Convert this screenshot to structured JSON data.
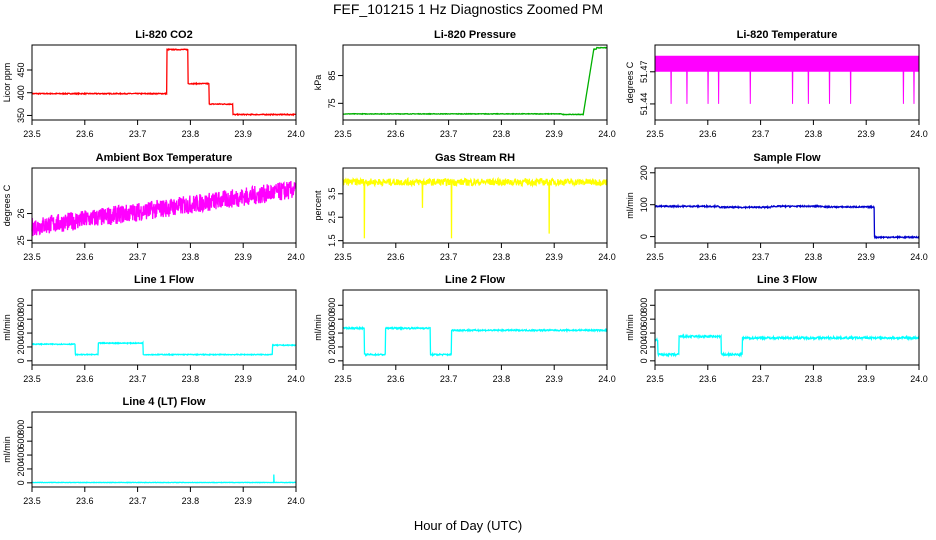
{
  "title": "FEF_101215  1 Hz Diagnostics Zoomed PM",
  "xlabel": "Hour of Day (UTC)",
  "chart_data": [
    {
      "type": "line",
      "title": "Li-820 CO2",
      "ylabel": "Licor ppm",
      "color": "#ff0000",
      "xlim": [
        23.5,
        24.0
      ],
      "ylim": [
        340,
        505
      ],
      "xticks": [
        "23.5",
        "23.6",
        "23.7",
        "23.8",
        "23.9",
        "24.0"
      ],
      "yticks": [
        350,
        400,
        450
      ],
      "pattern": "steps",
      "noise": 1,
      "segments": [
        [
          23.5,
          23.755,
          398
        ],
        [
          23.755,
          23.795,
          495
        ],
        [
          23.795,
          23.835,
          420
        ],
        [
          23.835,
          23.88,
          375
        ],
        [
          23.88,
          24.0,
          352
        ]
      ]
    },
    {
      "type": "line",
      "title": "Li-820 Pressure",
      "ylabel": "kPa",
      "color": "#00b000",
      "xlim": [
        23.5,
        24.0
      ],
      "ylim": [
        69,
        96
      ],
      "xticks": [
        "23.5",
        "23.6",
        "23.7",
        "23.8",
        "23.9",
        "24.0"
      ],
      "yticks": [
        75,
        85
      ],
      "pattern": "pressure",
      "noise": 0.1,
      "segments": [
        [
          23.5,
          23.915,
          71.2
        ],
        [
          23.915,
          23.955,
          71.0
        ],
        [
          23.955,
          23.98,
          94.5
        ],
        [
          23.98,
          24.0,
          95.0
        ]
      ]
    },
    {
      "type": "line",
      "title": "Li-820 Temperature",
      "ylabel": "degrees C",
      "color": "#ff00ff",
      "xlim": [
        23.5,
        24.0
      ],
      "ylim": [
        51.425,
        51.495
      ],
      "xticks": [
        "23.5",
        "23.6",
        "23.7",
        "23.8",
        "23.9",
        "24.0"
      ],
      "yticks": [
        51.44,
        51.47
      ],
      "pattern": "binary",
      "levels": [
        51.44,
        51.455,
        51.47,
        51.485
      ],
      "spikes": [
        23.53,
        23.56,
        23.6,
        23.62,
        23.68,
        23.76,
        23.79,
        23.83,
        23.87,
        23.97,
        23.99
      ]
    },
    {
      "type": "line",
      "title": "Ambient Box Temperature",
      "ylabel": "degrees C",
      "color": "#ff00ff",
      "xlim": [
        23.5,
        24.0
      ],
      "ylim": [
        24.9,
        27.7
      ],
      "xticks": [
        "23.5",
        "23.6",
        "23.7",
        "23.8",
        "23.9",
        "24.0"
      ],
      "yticks": [
        25.0,
        26.0
      ],
      "pattern": "trend",
      "start": 25.5,
      "end": 26.9,
      "noise": 0.35
    },
    {
      "type": "line",
      "title": "Gas Stream RH",
      "ylabel": "percent",
      "color": "#ffff00",
      "xlim": [
        23.5,
        24.0
      ],
      "ylim": [
        1.4,
        4.6
      ],
      "xticks": [
        "23.5",
        "23.6",
        "23.7",
        "23.8",
        "23.9",
        "24.0"
      ],
      "yticks": [
        1.5,
        2.5,
        3.5
      ],
      "pattern": "noisy",
      "base": 4.0,
      "noise": 0.15,
      "dips": [
        [
          23.54,
          1.6
        ],
        [
          23.65,
          2.9
        ],
        [
          23.705,
          1.6
        ],
        [
          23.89,
          1.8
        ]
      ]
    },
    {
      "type": "line",
      "title": "Sample Flow",
      "ylabel": "ml/min",
      "color": "#0000cd",
      "xlim": [
        23.5,
        24.0
      ],
      "ylim": [
        -20,
        215
      ],
      "xticks": [
        "23.5",
        "23.6",
        "23.7",
        "23.8",
        "23.9",
        "24.0"
      ],
      "yticks": [
        0,
        100,
        200
      ],
      "pattern": "steps",
      "noise": 2,
      "segments": [
        [
          23.5,
          23.62,
          95
        ],
        [
          23.62,
          23.72,
          92
        ],
        [
          23.72,
          23.82,
          95
        ],
        [
          23.82,
          23.915,
          93
        ],
        [
          23.915,
          24.0,
          -2
        ]
      ]
    },
    {
      "type": "line",
      "title": "Line 1 Flow",
      "ylabel": "ml/min",
      "color": "#00ffff",
      "xlim": [
        23.5,
        24.0
      ],
      "ylim": [
        -60,
        1020
      ],
      "xticks": [
        "23.5",
        "23.6",
        "23.7",
        "23.8",
        "23.9",
        "24.0"
      ],
      "yticks": [
        0,
        200,
        400,
        600,
        800
      ],
      "pattern": "steps",
      "noise": 6,
      "segments": [
        [
          23.5,
          23.582,
          240
        ],
        [
          23.582,
          23.625,
          90
        ],
        [
          23.625,
          23.71,
          255
        ],
        [
          23.71,
          23.955,
          90
        ],
        [
          23.955,
          24.0,
          225
        ]
      ]
    },
    {
      "type": "line",
      "title": "Line 2 Flow",
      "ylabel": "ml/min",
      "color": "#00ffff",
      "xlim": [
        23.5,
        24.0
      ],
      "ylim": [
        -60,
        1020
      ],
      "xticks": [
        "23.5",
        "23.6",
        "23.7",
        "23.8",
        "23.9",
        "24.0"
      ],
      "yticks": [
        0,
        200,
        400,
        600,
        800
      ],
      "pattern": "steps",
      "noise": 10,
      "segments": [
        [
          23.5,
          23.54,
          470
        ],
        [
          23.54,
          23.58,
          90
        ],
        [
          23.58,
          23.665,
          470
        ],
        [
          23.665,
          23.705,
          90
        ],
        [
          23.705,
          24.0,
          440
        ]
      ]
    },
    {
      "type": "line",
      "title": "Line 3 Flow",
      "ylabel": "ml/min",
      "color": "#00ffff",
      "xlim": [
        23.5,
        24.0
      ],
      "ylim": [
        -60,
        1020
      ],
      "xticks": [
        "23.5",
        "23.6",
        "23.7",
        "23.8",
        "23.9",
        "24.0"
      ],
      "yticks": [
        0,
        200,
        400,
        600,
        800
      ],
      "pattern": "steps",
      "noise": 15,
      "segments": [
        [
          23.5,
          23.505,
          300
        ],
        [
          23.505,
          23.545,
          90
        ],
        [
          23.545,
          23.625,
          350
        ],
        [
          23.625,
          23.665,
          90
        ],
        [
          23.665,
          24.0,
          330
        ]
      ]
    },
    {
      "type": "line",
      "title": "Line 4 (LT) Flow",
      "ylabel": "ml/min",
      "color": "#00ffff",
      "xlim": [
        23.5,
        24.0
      ],
      "ylim": [
        -60,
        1020
      ],
      "xticks": [
        "23.5",
        "23.6",
        "23.7",
        "23.8",
        "23.9",
        "24.0"
      ],
      "yticks": [
        0,
        200,
        400,
        600,
        800
      ],
      "pattern": "steps",
      "noise": 3,
      "spikes": [
        [
          23.958,
          120
        ]
      ],
      "segments": [
        [
          23.5,
          24.0,
          5
        ]
      ]
    }
  ]
}
